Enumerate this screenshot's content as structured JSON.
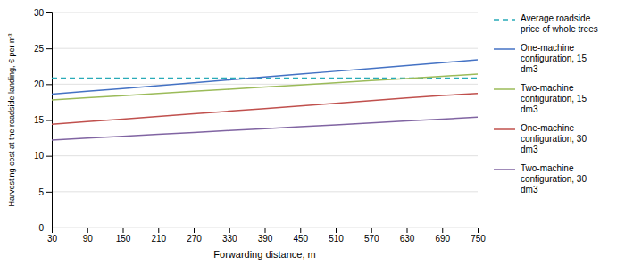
{
  "chart_data": {
    "type": "line",
    "xlabel": "Forwarding distance, m",
    "ylabel": "Harvesting cost at the roadside landing, € per m³",
    "x": [
      30,
      90,
      150,
      210,
      270,
      330,
      390,
      450,
      510,
      570,
      630,
      690,
      750
    ],
    "series": [
      {
        "name": "Average roadside\nprice of whole trees",
        "type": "hline",
        "value": 20.85,
        "color": "#29ABB8",
        "line_style": "dashed"
      },
      {
        "name": "One-machine\nconfiguration, 15\ndm3",
        "color": "#4472C4",
        "line_style": "solid",
        "values": [
          18.6,
          19.0,
          19.4,
          19.8,
          20.2,
          20.6,
          21.0,
          21.4,
          21.8,
          22.2,
          22.6,
          23.0,
          23.4
        ]
      },
      {
        "name": "Two-machine\nconfiguration, 15\ndm3",
        "color": "#9BBB59",
        "line_style": "solid",
        "values": [
          17.8,
          18.1,
          18.4,
          18.7,
          19.0,
          19.3,
          19.6,
          19.9,
          20.2,
          20.5,
          20.8,
          21.1,
          21.4
        ]
      },
      {
        "name": "One-machine\nconfiguration, 30\ndm3",
        "color": "#C0504D",
        "line_style": "solid",
        "values": [
          14.4,
          14.77,
          15.13,
          15.5,
          15.87,
          16.23,
          16.6,
          16.97,
          17.33,
          17.7,
          18.07,
          18.43,
          18.7
        ]
      },
      {
        "name": "Two-machine\nconfiguration, 30\ndm3",
        "color": "#8064A2",
        "line_style": "solid",
        "values": [
          12.2,
          12.47,
          12.73,
          13.0,
          13.27,
          13.53,
          13.8,
          14.07,
          14.33,
          14.6,
          14.87,
          15.13,
          15.4
        ]
      }
    ],
    "xlim": [
      30,
      750
    ],
    "xticks": [
      30,
      90,
      150,
      210,
      270,
      330,
      390,
      450,
      510,
      570,
      630,
      690,
      750
    ],
    "ylim": [
      0,
      30
    ],
    "yticks": [
      0,
      5,
      10,
      15,
      20,
      25,
      30
    ],
    "grid": true,
    "legend": "right"
  }
}
